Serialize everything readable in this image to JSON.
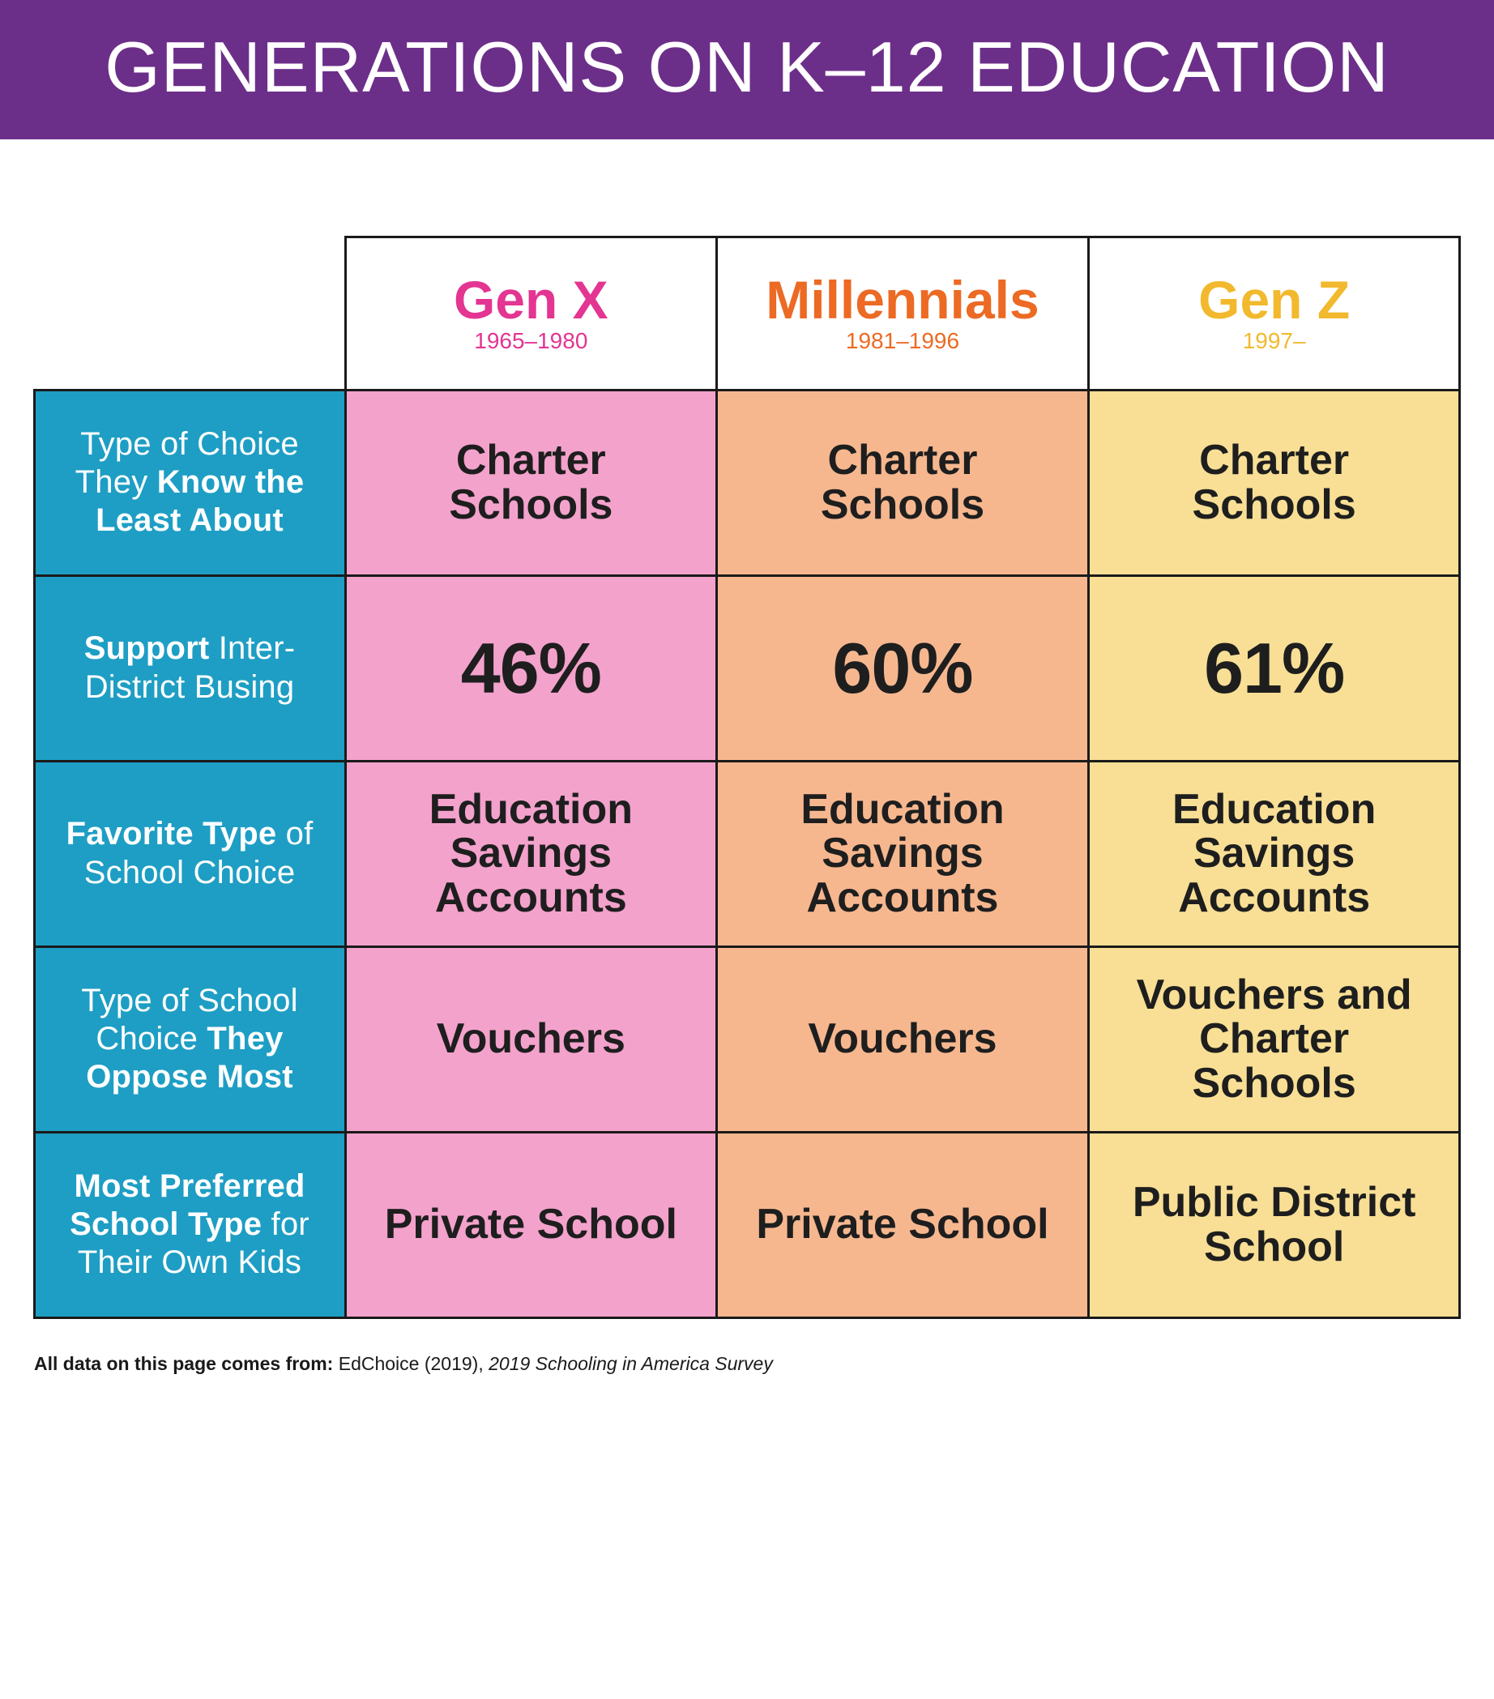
{
  "banner": {
    "title": "GENERATIONS ON K–12 EDUCATION",
    "bg_color": "#6c2f89",
    "title_fontsize": 88
  },
  "table": {
    "border_color": "#1a1a1a",
    "row_label_bg": "#1e9ec4",
    "row_label_color": "#ffffff",
    "columns": [
      {
        "name": "Gen X",
        "years": "1965–1980",
        "header_color": "#e33591",
        "cell_bg": "#f3a2cb"
      },
      {
        "name": "Millennials",
        "years": "1981–1996",
        "header_color": "#ec6a23",
        "cell_bg": "#f6b78f"
      },
      {
        "name": "Gen Z",
        "years": "1997–",
        "header_color": "#f2b92e",
        "cell_bg": "#f8df95"
      }
    ],
    "rows": [
      {
        "label_plain_pre": "Type of Choice They ",
        "label_bold": "Know the Least About",
        "label_plain_post": "",
        "cells": [
          "Charter Schools",
          "Charter Schools",
          "Charter Schools"
        ],
        "is_percent": false
      },
      {
        "label_plain_pre": "",
        "label_bold": "Support",
        "label_plain_post": " Inter-District Busing",
        "cells": [
          "46%",
          "60%",
          "61%"
        ],
        "is_percent": true
      },
      {
        "label_plain_pre": "",
        "label_bold": "Favorite Type",
        "label_plain_post": " of School Choice",
        "cells": [
          "Education Savings Accounts",
          "Education Savings Accounts",
          "Education Savings Accounts"
        ],
        "is_percent": false
      },
      {
        "label_plain_pre": "Type of School Choice ",
        "label_bold": "They Oppose Most",
        "label_plain_post": "",
        "cells": [
          "Vouchers",
          "Vouchers",
          "Vouchers and Charter Schools"
        ],
        "is_percent": false
      },
      {
        "label_plain_pre": "",
        "label_bold": "Most Preferred School Type",
        "label_plain_post": " for Their Own Kids",
        "cells": [
          "Private School",
          "Private School",
          "Public District School"
        ],
        "is_percent": false
      }
    ]
  },
  "citation": {
    "lead": "All data on this page comes from: ",
    "source": "EdChoice (2019), ",
    "italic": "2019 Schooling in America Survey"
  }
}
